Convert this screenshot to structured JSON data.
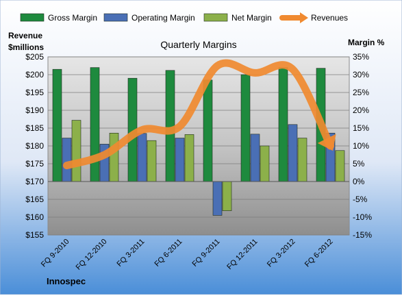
{
  "chart_data": {
    "type": "bar",
    "title": "Quarterly Margins",
    "company": "Innospec",
    "left_axis": {
      "label_line1": "Revenue",
      "label_line2": "$millions",
      "range": [
        155,
        205
      ],
      "step": 5,
      "tick_prefix": "$"
    },
    "right_axis": {
      "label": "Margin %",
      "range": [
        -15,
        35
      ],
      "step": 5,
      "tick_suffix": "%"
    },
    "categories": [
      "FQ 9-2010",
      "FQ 12-2010",
      "FQ 3-2011",
      "FQ 6-2011",
      "FQ 9-2011",
      "FQ 12-2011",
      "FQ 3-2012",
      "FQ 6-2012"
    ],
    "series": [
      {
        "name": "Gross Margin",
        "axis": "right",
        "kind": "bar",
        "color": "#1e8a3e",
        "values": [
          31.5,
          32.0,
          29.0,
          31.2,
          28.5,
          30.0,
          32.0,
          31.8
        ]
      },
      {
        "name": "Operating Margin",
        "axis": "right",
        "kind": "bar",
        "color": "#4a6fb5",
        "values": [
          12.2,
          10.5,
          13.5,
          12.2,
          -9.5,
          13.3,
          16.0,
          13.6
        ]
      },
      {
        "name": "Net Margin",
        "axis": "right",
        "kind": "bar",
        "color": "#8cb04a",
        "values": [
          17.2,
          13.6,
          11.5,
          13.2,
          -8.2,
          10.0,
          12.2,
          8.7
        ]
      },
      {
        "name": "Revenues",
        "axis": "left",
        "kind": "line",
        "color": "#f08a30",
        "values": [
          174.5,
          177.5,
          184.5,
          185.5,
          202.5,
          200.5,
          201.5,
          180.0
        ]
      }
    ],
    "legend": "top",
    "grid": true
  }
}
